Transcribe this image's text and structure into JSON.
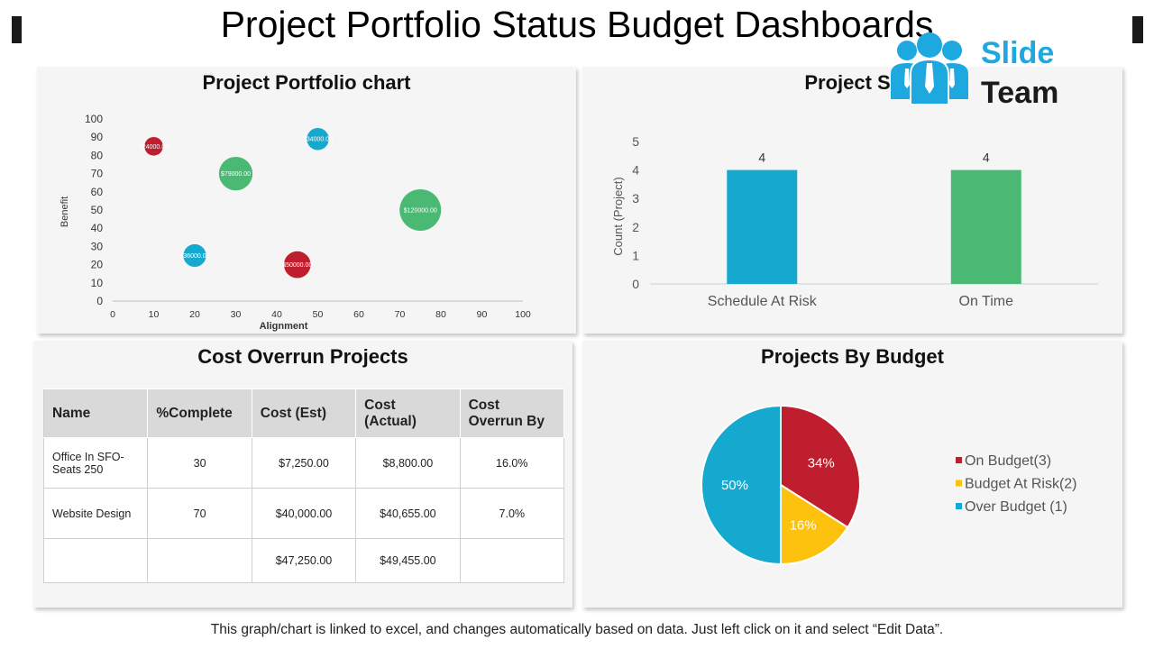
{
  "page_title": "Project Portfolio Status Budget Dashboards",
  "footnote": "This graph/chart is linked to excel, and changes automatically  based on data. Just left click on it and select “Edit Data”.",
  "logo": {
    "line1": "Slide",
    "line2": "Team",
    "color": "#1ea8e0"
  },
  "colors": {
    "red": "#be1e2d",
    "green": "#49b973",
    "blue": "#15a9cf",
    "yellow": "#fcc20e"
  },
  "chart_data": [
    {
      "type": "scatter",
      "title": "Project Portfolio chart",
      "xlabel": "Alignment",
      "ylabel": "Benefit",
      "xlim": [
        0,
        100
      ],
      "ylim": [
        0,
        100
      ],
      "xticks": [
        0,
        10,
        20,
        30,
        40,
        50,
        60,
        70,
        80,
        90,
        100
      ],
      "yticks": [
        0,
        10,
        20,
        30,
        40,
        50,
        60,
        70,
        80,
        90,
        100
      ],
      "points": [
        {
          "x": 10,
          "y": 85,
          "size": 24000,
          "label": "$24000.00",
          "color": "#be1e2d"
        },
        {
          "x": 50,
          "y": 89,
          "size": 34000,
          "label": "$34000.00",
          "color": "#15a9cf"
        },
        {
          "x": 30,
          "y": 70,
          "size": 79000,
          "label": "$79000.00",
          "color": "#49b973"
        },
        {
          "x": 75,
          "y": 50,
          "size": 120000,
          "label": "$120000.00",
          "color": "#49b973"
        },
        {
          "x": 20,
          "y": 25,
          "size": 36000,
          "label": "$36000.00",
          "color": "#15a9cf"
        },
        {
          "x": 45,
          "y": 20,
          "size": 50000,
          "label": "$50000.00",
          "color": "#be1e2d"
        }
      ]
    },
    {
      "type": "bar",
      "title": "Project Stat",
      "ylabel": "Count (Project)",
      "categories": [
        "Schedule At Risk",
        "On Time"
      ],
      "values": [
        4,
        4
      ],
      "colors": [
        "#15a9cf",
        "#49b973"
      ],
      "ylim": [
        0,
        5
      ],
      "yticks": [
        0,
        1,
        2,
        3,
        4,
        5
      ]
    },
    {
      "type": "table",
      "title": "Cost Overrun Projects",
      "columns": [
        "Name",
        "%Complete",
        "Cost (Est)",
        "Cost (Actual)",
        "Cost Overrun By"
      ],
      "rows": [
        [
          "Office In SFO-Seats 250",
          "30",
          "$7,250.00",
          "$8,800.00",
          "16.0%"
        ],
        [
          "Website Design",
          "70",
          "$40,000.00",
          "$40,655.00",
          "7.0%"
        ],
        [
          "",
          "",
          "$47,250.00",
          "$49,455.00",
          ""
        ]
      ]
    },
    {
      "type": "pie",
      "title": "Projects By Budget",
      "slices": [
        {
          "name": "On Budget(3)",
          "value": 34,
          "label": "34%",
          "color": "#be1e2d"
        },
        {
          "name": "Budget At Risk(2)",
          "value": 16,
          "label": "16%",
          "color": "#fcc20e"
        },
        {
          "name": "Over Budget (1)",
          "value": 50,
          "label": "50%",
          "color": "#15a9cf"
        }
      ],
      "legend": "right"
    }
  ]
}
